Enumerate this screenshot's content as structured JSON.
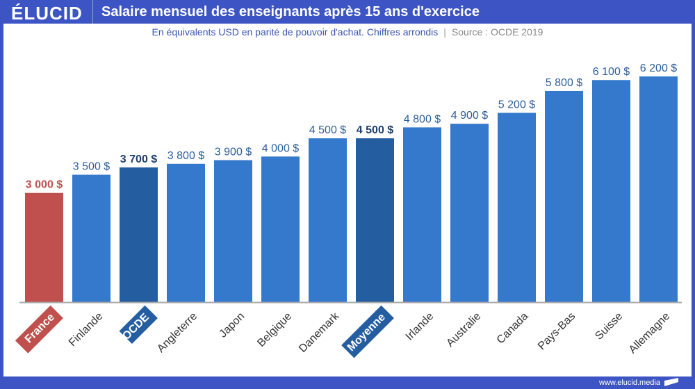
{
  "header": {
    "logo": "ÉLUCID",
    "title": "Salaire mensuel des enseignants après 15 ans d'exercice"
  },
  "subtitle": {
    "text": "En équivalents USD en parité de pouvoir d'achat. Chiffres arrondis",
    "separator": "|",
    "source": "Source : OCDE 2019"
  },
  "footer": {
    "url": "www.elucid.media"
  },
  "colors": {
    "bar_default": "#3579cc",
    "bar_highlight": "#255ea0",
    "bar_france": "#c0504d",
    "label_default": "#2c5d9a",
    "label_highlight": "#1e3f6e",
    "label_france": "#c0504d",
    "header": "#3d55c4"
  },
  "chart_data": {
    "type": "bar",
    "title": "Salaire mensuel des enseignants après 15 ans d'exercice",
    "subtitle": "En équivalents USD en parité de pouvoir d'achat. Chiffres arrondis | Source : OCDE 2019",
    "xlabel": "",
    "ylabel": "",
    "ylim": [
      0,
      6200
    ],
    "grid": false,
    "legend": "none",
    "categories": [
      "France",
      "Finlande",
      "OCDE",
      "Angleterre",
      "Japon",
      "Belgique",
      "Danemark",
      "Moyenne",
      "Irlande",
      "Australie",
      "Canada",
      "Pays-Bas",
      "Suisse",
      "Allemagne"
    ],
    "values": [
      3000,
      3500,
      3700,
      3800,
      3900,
      4000,
      4500,
      4500,
      4800,
      4900,
      5200,
      5800,
      6100,
      6200
    ],
    "data_labels": [
      "3 000 $",
      "3 500 $",
      "3 700 $",
      "3 800 $",
      "3 900 $",
      "4 000 $",
      "4 500 $",
      "4 500 $",
      "4 800 $",
      "4 900 $",
      "5 200 $",
      "5 800 $",
      "6 100 $",
      "6 200 $"
    ],
    "highlight": [
      "france",
      "default",
      "highlight",
      "default",
      "default",
      "default",
      "default",
      "highlight",
      "default",
      "default",
      "default",
      "default",
      "default",
      "default"
    ]
  }
}
